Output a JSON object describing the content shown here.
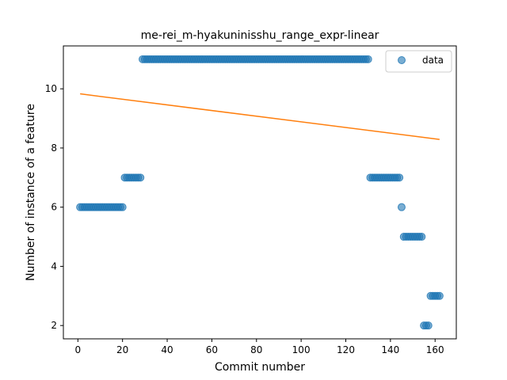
{
  "chart_data": {
    "type": "scatter",
    "title": "me-rei_m-hyakuninisshu_range_expr-linear",
    "xlabel": "Commit number",
    "ylabel": "Number of instance of a feature",
    "xlim": [
      -6.5,
      169.5
    ],
    "ylim": [
      1.55,
      11.45
    ],
    "xticks": [
      0,
      20,
      40,
      60,
      80,
      100,
      120,
      140,
      160
    ],
    "yticks": [
      2,
      4,
      6,
      8,
      10
    ],
    "legend": {
      "label": "data",
      "position": "upper right"
    },
    "series": [
      {
        "name": "data",
        "kind": "scatter",
        "color": "#1f77b4",
        "segments": [
          {
            "x_from": 1,
            "x_to": 20,
            "y": 6
          },
          {
            "x_from": 21,
            "x_to": 28,
            "y": 7
          },
          {
            "x_from": 29,
            "x_to": 130,
            "y": 11
          },
          {
            "x_from": 131,
            "x_to": 144,
            "y": 7
          },
          {
            "x_from": 145,
            "x_to": 145,
            "y": 6
          },
          {
            "x_from": 146,
            "x_to": 154,
            "y": 5
          },
          {
            "x_from": 155,
            "x_to": 157,
            "y": 2
          },
          {
            "x_from": 158,
            "x_to": 162,
            "y": 3
          }
        ]
      },
      {
        "name": "",
        "kind": "line",
        "color": "#ff7f0e",
        "x": [
          1,
          162
        ],
        "y": [
          9.83,
          8.29
        ]
      }
    ]
  }
}
